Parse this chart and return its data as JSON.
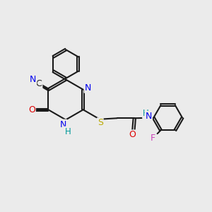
{
  "bg_color": "#ebebeb",
  "bond_color": "#1a1a1a",
  "bond_lw": 1.5,
  "dbo": 0.05,
  "atom_colors": {
    "C": "#1a1a1a",
    "N": "#0000ee",
    "O": "#dd0000",
    "S": "#bbaa00",
    "F": "#cc44bb",
    "H": "#009999"
  },
  "fs": 8.5,
  "figsize": [
    3.0,
    3.0
  ],
  "dpi": 100
}
